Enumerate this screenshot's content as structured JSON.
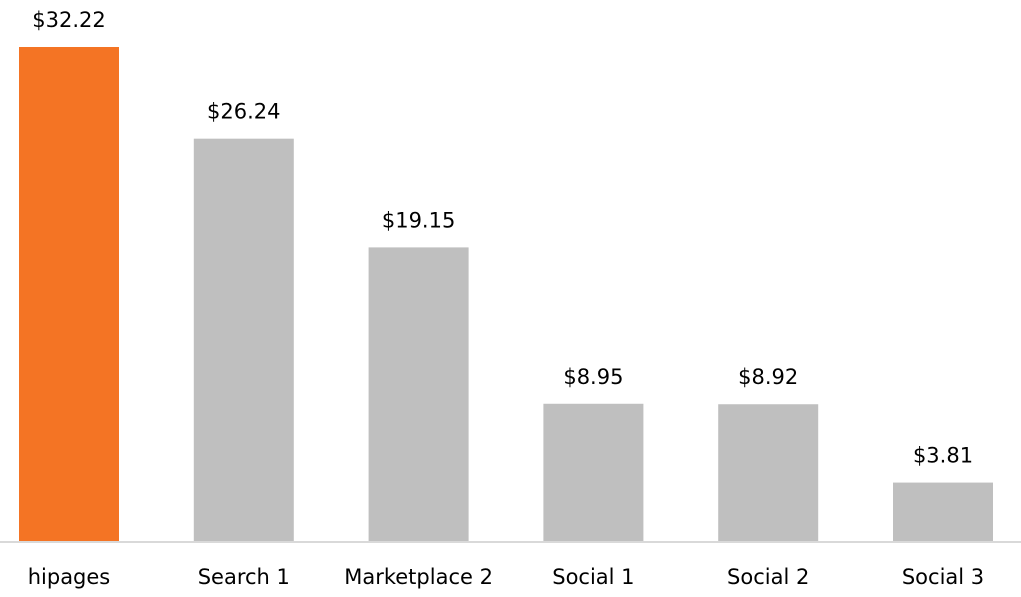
{
  "chart_data": {
    "type": "bar",
    "categories": [
      "hipages",
      "Search 1",
      "Marketplace 2",
      "Social 1",
      "Social 2",
      "Social 3"
    ],
    "values": [
      32.22,
      26.24,
      19.15,
      8.95,
      8.92,
      3.81
    ],
    "value_labels": [
      "$32.22",
      "$26.24",
      "$19.15",
      "$8.95",
      "$8.92",
      "$3.81"
    ],
    "colors": [
      "#f47424",
      "#bfbfbf",
      "#bfbfbf",
      "#bfbfbf",
      "#bfbfbf",
      "#bfbfbf"
    ]
  }
}
